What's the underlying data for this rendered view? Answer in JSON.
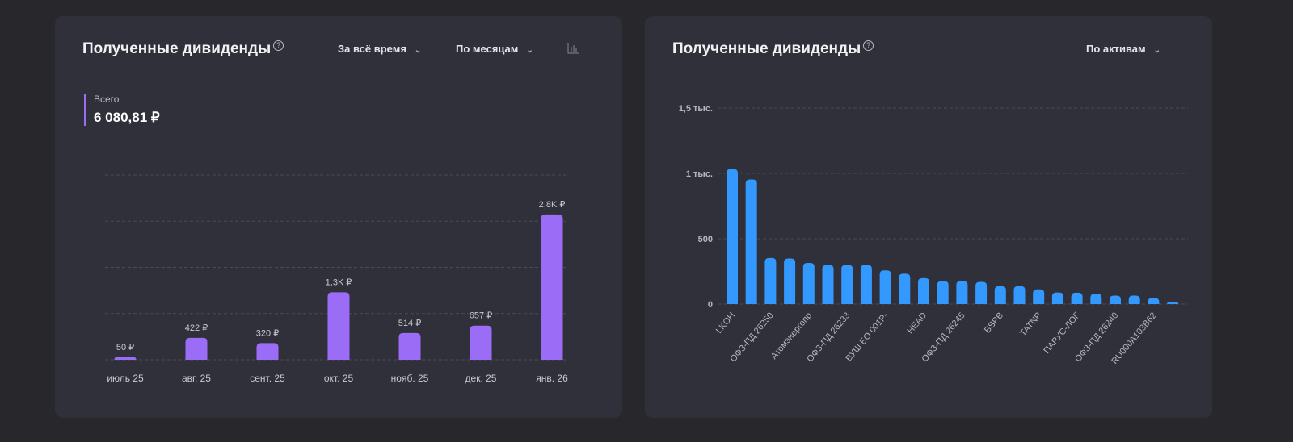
{
  "left": {
    "title": "Полученные дивиденды",
    "help": "?",
    "period_dropdown": "За всё время",
    "group_dropdown": "По месяцам",
    "total_label": "Всего",
    "total_value": "6 080,81 ₽"
  },
  "right": {
    "title": "Полученные дивиденды",
    "help": "?",
    "group_dropdown": "По активам"
  },
  "colors": {
    "purple": "#9b6cf6",
    "blue": "#3399ff"
  },
  "chart_data": [
    {
      "type": "bar",
      "title": "Полученные дивиденды",
      "categories": [
        "июль 25",
        "авг. 25",
        "сент. 25",
        "окт. 25",
        "нояб. 25",
        "дек. 25",
        "янв. 26"
      ],
      "values": [
        50,
        422,
        320,
        1300,
        514,
        657,
        2800
      ],
      "data_labels": [
        "50 ₽",
        "422 ₽",
        "320 ₽",
        "1,3K ₽",
        "514 ₽",
        "657 ₽",
        "2,8K ₽"
      ],
      "ylim": [
        0,
        3560
      ],
      "gridlines": 4
    },
    {
      "type": "bar",
      "title": "Полученные дивиденды",
      "categories": [
        "LKOH",
        "",
        "ОФЗ-ПД 26250",
        "",
        "Атомэнергопр",
        "",
        "ОФЗ-ПД 26233",
        "",
        "ВУШ БО 001Р-",
        "",
        "HEAD",
        "",
        "ОФЗ-ПД 26245",
        "",
        "BSPB",
        "",
        "TATNP",
        "",
        "ПАРУС-ЛОГ",
        "",
        "ОФЗ-ПД 26240",
        "",
        "RU000A103B62",
        ""
      ],
      "values": [
        1033,
        954,
        353,
        349,
        315,
        299,
        299,
        299,
        258,
        232,
        198,
        176,
        176,
        170,
        137,
        137,
        113,
        89,
        87,
        79,
        65,
        65,
        46,
        15
      ],
      "yticks": [
        0,
        500,
        1000,
        1500
      ],
      "ytick_labels": [
        "0",
        "500",
        "1 тыс.",
        "1,5 тыс."
      ],
      "ylim": [
        0,
        1500
      ]
    }
  ]
}
